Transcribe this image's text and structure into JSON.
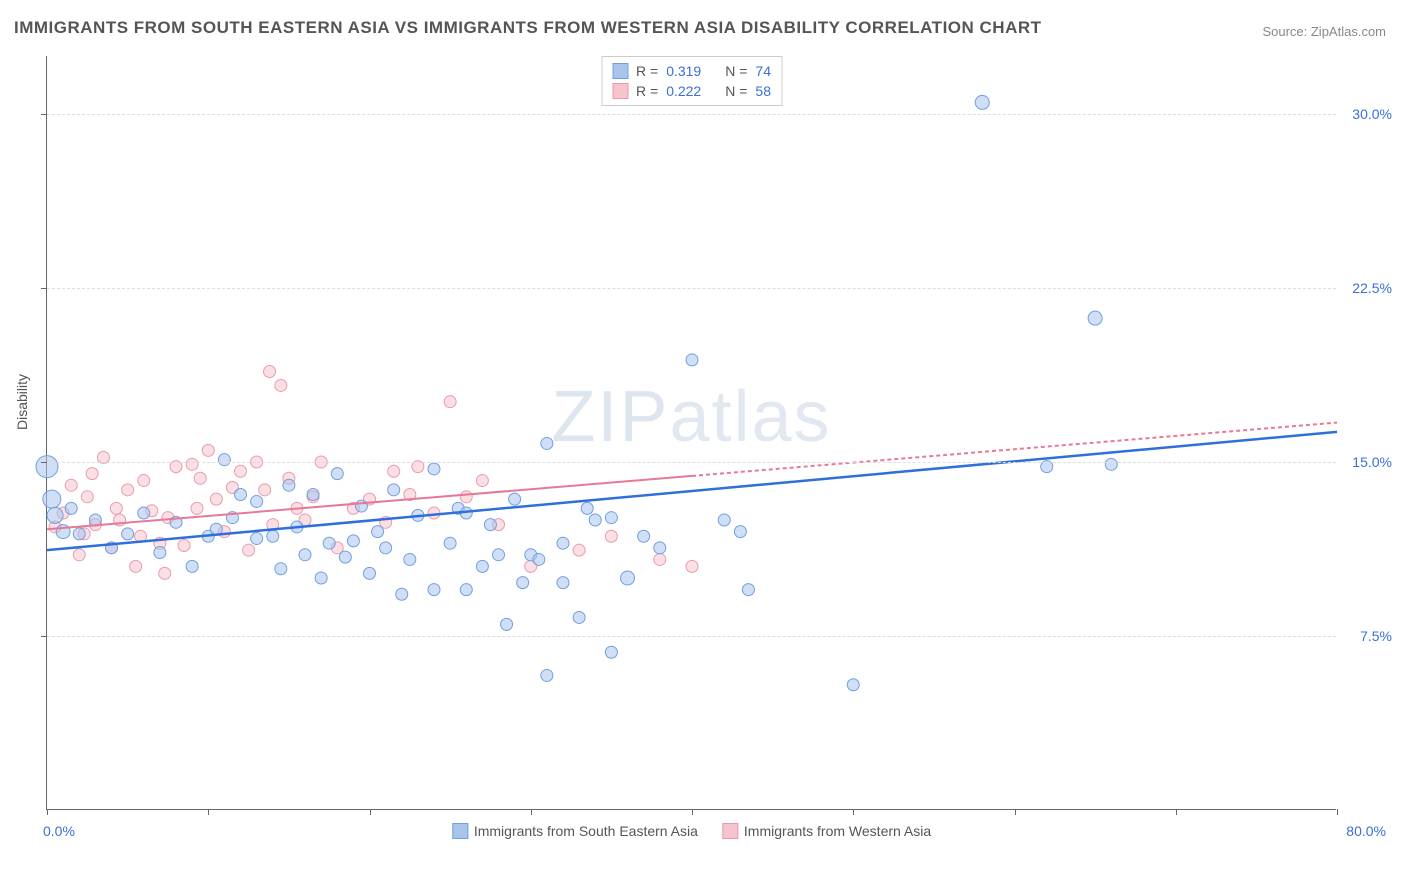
{
  "title": "IMMIGRANTS FROM SOUTH EASTERN ASIA VS IMMIGRANTS FROM WESTERN ASIA DISABILITY CORRELATION CHART",
  "source": "Source: ZipAtlas.com",
  "watermark": "ZIPatlas",
  "ylabel": "Disability",
  "chart": {
    "type": "scatter",
    "xlim": [
      0,
      80
    ],
    "ylim": [
      0,
      32.5
    ],
    "x_min_label": "0.0%",
    "x_max_label": "80.0%",
    "yticks": [
      7.5,
      15.0,
      22.5,
      30.0
    ],
    "ytick_labels": [
      "7.5%",
      "15.0%",
      "22.5%",
      "30.0%"
    ],
    "xtick_positions": [
      0,
      10,
      20,
      30,
      40,
      50,
      60,
      70,
      80
    ],
    "grid_color": "#dddddd",
    "axis_color": "#666666",
    "background_color": "#ffffff",
    "series": [
      {
        "name": "Immigrants from South Eastern Asia",
        "color_fill": "#a9c5ec",
        "color_stroke": "#6f9fe0",
        "R": "0.319",
        "N": "74",
        "trend": {
          "color": "#2e6fdc",
          "width": 2.5,
          "x1": 0,
          "y1": 11.2,
          "x2": 80,
          "y2": 16.3
        },
        "points": [
          {
            "x": 0,
            "y": 14.8,
            "r": 11
          },
          {
            "x": 0.3,
            "y": 13.4,
            "r": 9
          },
          {
            "x": 0.5,
            "y": 12.7,
            "r": 8
          },
          {
            "x": 1.0,
            "y": 12.0,
            "r": 7
          },
          {
            "x": 4,
            "y": 11.3,
            "r": 6
          },
          {
            "x": 5,
            "y": 11.9,
            "r": 6
          },
          {
            "x": 6,
            "y": 12.8,
            "r": 6
          },
          {
            "x": 7,
            "y": 11.1,
            "r": 6
          },
          {
            "x": 8,
            "y": 12.4,
            "r": 6
          },
          {
            "x": 9,
            "y": 10.5,
            "r": 6
          },
          {
            "x": 10,
            "y": 11.8,
            "r": 6
          },
          {
            "x": 10.5,
            "y": 12.1,
            "r": 6
          },
          {
            "x": 11,
            "y": 15.1,
            "r": 6
          },
          {
            "x": 11.5,
            "y": 12.6,
            "r": 6
          },
          {
            "x": 12,
            "y": 13.6,
            "r": 6
          },
          {
            "x": 13,
            "y": 11.7,
            "r": 6
          },
          {
            "x": 13,
            "y": 13.3,
            "r": 6
          },
          {
            "x": 14,
            "y": 11.8,
            "r": 6
          },
          {
            "x": 14.5,
            "y": 10.4,
            "r": 6
          },
          {
            "x": 15,
            "y": 14.0,
            "r": 6
          },
          {
            "x": 15.5,
            "y": 12.2,
            "r": 6
          },
          {
            "x": 16,
            "y": 11.0,
            "r": 6
          },
          {
            "x": 16.5,
            "y": 13.6,
            "r": 6
          },
          {
            "x": 17,
            "y": 10.0,
            "r": 6
          },
          {
            "x": 17.5,
            "y": 11.5,
            "r": 6
          },
          {
            "x": 18,
            "y": 14.5,
            "r": 6
          },
          {
            "x": 18.5,
            "y": 10.9,
            "r": 6
          },
          {
            "x": 19,
            "y": 11.6,
            "r": 6
          },
          {
            "x": 19.5,
            "y": 13.1,
            "r": 6
          },
          {
            "x": 20,
            "y": 10.2,
            "r": 6
          },
          {
            "x": 20.5,
            "y": 12.0,
            "r": 6
          },
          {
            "x": 21,
            "y": 11.3,
            "r": 6
          },
          {
            "x": 21.5,
            "y": 13.8,
            "r": 6
          },
          {
            "x": 22,
            "y": 9.3,
            "r": 6
          },
          {
            "x": 22.5,
            "y": 10.8,
            "r": 6
          },
          {
            "x": 23,
            "y": 12.7,
            "r": 6
          },
          {
            "x": 24,
            "y": 9.5,
            "r": 6
          },
          {
            "x": 24,
            "y": 14.7,
            "r": 6
          },
          {
            "x": 25,
            "y": 11.5,
            "r": 6
          },
          {
            "x": 25.5,
            "y": 13.0,
            "r": 6
          },
          {
            "x": 26,
            "y": 9.5,
            "r": 6
          },
          {
            "x": 26,
            "y": 12.8,
            "r": 6
          },
          {
            "x": 27,
            "y": 10.5,
            "r": 6
          },
          {
            "x": 27.5,
            "y": 12.3,
            "r": 6
          },
          {
            "x": 28,
            "y": 11.0,
            "r": 6
          },
          {
            "x": 28.5,
            "y": 8.0,
            "r": 6
          },
          {
            "x": 29,
            "y": 13.4,
            "r": 6
          },
          {
            "x": 29.5,
            "y": 9.8,
            "r": 6
          },
          {
            "x": 30,
            "y": 11.0,
            "r": 6
          },
          {
            "x": 30.5,
            "y": 10.8,
            "r": 6
          },
          {
            "x": 31,
            "y": 15.8,
            "r": 6
          },
          {
            "x": 31,
            "y": 5.8,
            "r": 6
          },
          {
            "x": 32,
            "y": 11.5,
            "r": 6
          },
          {
            "x": 32,
            "y": 9.8,
            "r": 6
          },
          {
            "x": 33,
            "y": 8.3,
            "r": 6
          },
          {
            "x": 33.5,
            "y": 13.0,
            "r": 6
          },
          {
            "x": 34,
            "y": 12.5,
            "r": 6
          },
          {
            "x": 35,
            "y": 6.8,
            "r": 6
          },
          {
            "x": 35,
            "y": 12.6,
            "r": 6
          },
          {
            "x": 36,
            "y": 10.0,
            "r": 7
          },
          {
            "x": 37,
            "y": 11.8,
            "r": 6
          },
          {
            "x": 38,
            "y": 11.3,
            "r": 6
          },
          {
            "x": 40,
            "y": 19.4,
            "r": 6
          },
          {
            "x": 42,
            "y": 12.5,
            "r": 6
          },
          {
            "x": 43,
            "y": 12.0,
            "r": 6
          },
          {
            "x": 43.5,
            "y": 9.5,
            "r": 6
          },
          {
            "x": 50,
            "y": 5.4,
            "r": 6
          },
          {
            "x": 58,
            "y": 30.5,
            "r": 7
          },
          {
            "x": 62,
            "y": 14.8,
            "r": 6
          },
          {
            "x": 65,
            "y": 21.2,
            "r": 7
          },
          {
            "x": 66,
            "y": 14.9,
            "r": 6
          },
          {
            "x": 1.5,
            "y": 13.0,
            "r": 6
          },
          {
            "x": 2,
            "y": 11.9,
            "r": 6
          },
          {
            "x": 3,
            "y": 12.5,
            "r": 6
          }
        ]
      },
      {
        "name": "Immigrants from Western Asia",
        "color_fill": "#f5c4cd",
        "color_stroke": "#eb9aad",
        "R": "0.222",
        "N": "58",
        "trend": {
          "color": "#e67a96",
          "width": 2,
          "dash": "4,3",
          "x1": 0,
          "y1": 12.1,
          "x2": 80,
          "y2": 16.7
        },
        "points": [
          {
            "x": 0.5,
            "y": 12.2,
            "r": 6
          },
          {
            "x": 1,
            "y": 12.8,
            "r": 6
          },
          {
            "x": 1.5,
            "y": 14.0,
            "r": 6
          },
          {
            "x": 2,
            "y": 11.0,
            "r": 6
          },
          {
            "x": 2.3,
            "y": 11.9,
            "r": 6
          },
          {
            "x": 2.5,
            "y": 13.5,
            "r": 6
          },
          {
            "x": 2.8,
            "y": 14.5,
            "r": 6
          },
          {
            "x": 3,
            "y": 12.3,
            "r": 6
          },
          {
            "x": 3.5,
            "y": 15.2,
            "r": 6
          },
          {
            "x": 4,
            "y": 11.3,
            "r": 6
          },
          {
            "x": 4.3,
            "y": 13.0,
            "r": 6
          },
          {
            "x": 4.5,
            "y": 12.5,
            "r": 6
          },
          {
            "x": 5,
            "y": 13.8,
            "r": 6
          },
          {
            "x": 5.5,
            "y": 10.5,
            "r": 6
          },
          {
            "x": 5.8,
            "y": 11.8,
            "r": 6
          },
          {
            "x": 6,
            "y": 14.2,
            "r": 6
          },
          {
            "x": 6.5,
            "y": 12.9,
            "r": 6
          },
          {
            "x": 7,
            "y": 11.5,
            "r": 6
          },
          {
            "x": 7.3,
            "y": 10.2,
            "r": 6
          },
          {
            "x": 7.5,
            "y": 12.6,
            "r": 6
          },
          {
            "x": 8,
            "y": 14.8,
            "r": 6
          },
          {
            "x": 8.5,
            "y": 11.4,
            "r": 6
          },
          {
            "x": 9,
            "y": 14.9,
            "r": 6
          },
          {
            "x": 9.3,
            "y": 13.0,
            "r": 6
          },
          {
            "x": 9.5,
            "y": 14.3,
            "r": 6
          },
          {
            "x": 10,
            "y": 15.5,
            "r": 6
          },
          {
            "x": 10.5,
            "y": 13.4,
            "r": 6
          },
          {
            "x": 11,
            "y": 12.0,
            "r": 6
          },
          {
            "x": 11.5,
            "y": 13.9,
            "r": 6
          },
          {
            "x": 12,
            "y": 14.6,
            "r": 6
          },
          {
            "x": 12.5,
            "y": 11.2,
            "r": 6
          },
          {
            "x": 13,
            "y": 15.0,
            "r": 6
          },
          {
            "x": 13.5,
            "y": 13.8,
            "r": 6
          },
          {
            "x": 13.8,
            "y": 18.9,
            "r": 6
          },
          {
            "x": 14,
            "y": 12.3,
            "r": 6
          },
          {
            "x": 14.5,
            "y": 18.3,
            "r": 6
          },
          {
            "x": 15,
            "y": 14.3,
            "r": 6
          },
          {
            "x": 15.5,
            "y": 13.0,
            "r": 6
          },
          {
            "x": 16,
            "y": 12.5,
            "r": 6
          },
          {
            "x": 16.5,
            "y": 13.5,
            "r": 6
          },
          {
            "x": 17,
            "y": 15.0,
            "r": 6
          },
          {
            "x": 18,
            "y": 11.3,
            "r": 6
          },
          {
            "x": 19,
            "y": 13.0,
            "r": 6
          },
          {
            "x": 20,
            "y": 13.4,
            "r": 6
          },
          {
            "x": 21,
            "y": 12.4,
            "r": 6
          },
          {
            "x": 21.5,
            "y": 14.6,
            "r": 6
          },
          {
            "x": 22.5,
            "y": 13.6,
            "r": 6
          },
          {
            "x": 23,
            "y": 14.8,
            "r": 6
          },
          {
            "x": 24,
            "y": 12.8,
            "r": 6
          },
          {
            "x": 25,
            "y": 17.6,
            "r": 6
          },
          {
            "x": 26,
            "y": 13.5,
            "r": 6
          },
          {
            "x": 27,
            "y": 14.2,
            "r": 6
          },
          {
            "x": 28,
            "y": 12.3,
            "r": 6
          },
          {
            "x": 30,
            "y": 10.5,
            "r": 6
          },
          {
            "x": 33,
            "y": 11.2,
            "r": 6
          },
          {
            "x": 35,
            "y": 11.8,
            "r": 6
          },
          {
            "x": 38,
            "y": 10.8,
            "r": 6
          },
          {
            "x": 40,
            "y": 10.5,
            "r": 6
          }
        ]
      }
    ]
  },
  "legend_top_labels": {
    "R": "R =",
    "N": "N ="
  },
  "legend_bottom": [
    "Immigrants from South Eastern Asia",
    "Immigrants from Western Asia"
  ]
}
